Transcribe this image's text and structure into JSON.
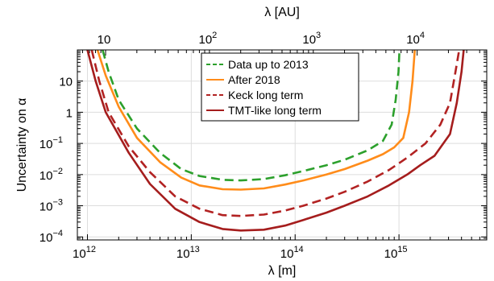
{
  "chart_data": {
    "type": "line",
    "xscale": "log",
    "yscale": "log",
    "xlabel": "λ [m]",
    "ylabel": "Uncertainty on α",
    "top_xlabel": "λ [AU]",
    "xlim": [
      800000000000.0,
      7000000000000000.0
    ],
    "ylim": [
      8e-05,
      100
    ],
    "grid": true,
    "legend_position": "top-center",
    "x_ticks": [
      {
        "value": 1000000000000.0,
        "base": "10",
        "exp": "12"
      },
      {
        "value": 10000000000000.0,
        "base": "10",
        "exp": "13"
      },
      {
        "value": 100000000000000.0,
        "base": "10",
        "exp": "14"
      },
      {
        "value": 1000000000000000.0,
        "base": "10",
        "exp": "15"
      }
    ],
    "y_ticks": [
      {
        "value": 0.0001,
        "base": "10",
        "exp": "−4"
      },
      {
        "value": 0.001,
        "base": "10",
        "exp": "−3"
      },
      {
        "value": 0.01,
        "base": "10",
        "exp": "−2"
      },
      {
        "value": 0.1,
        "base": "10",
        "exp": "−1"
      },
      {
        "value": 1,
        "base": "1",
        "exp": ""
      },
      {
        "value": 10,
        "base": "10",
        "exp": ""
      }
    ],
    "top_ticks": [
      {
        "value": 10,
        "base": "10",
        "exp": ""
      },
      {
        "value": 100,
        "base": "10",
        "exp": "2"
      },
      {
        "value": 1000,
        "base": "10",
        "exp": "3"
      },
      {
        "value": 10000,
        "base": "10",
        "exp": "4"
      }
    ],
    "series": [
      {
        "name": "Data up to 2013",
        "color": "#2ca02c",
        "dash": "dashed",
        "x": [
          1400000000000.0,
          1600000000000.0,
          2000000000000.0,
          3000000000000.0,
          5000000000000.0,
          8000000000000.0,
          12000000000000.0,
          20000000000000.0,
          30000000000000.0,
          50000000000000.0,
          80000000000000.0,
          120000000000000.0,
          200000000000000.0,
          300000000000000.0,
          500000000000000.0,
          700000000000000.0,
          850000000000000.0,
          930000000000000.0,
          990000000000000.0,
          1010000000000000.0
        ],
        "y": [
          100,
          20,
          2.5,
          0.3,
          0.05,
          0.015,
          0.009,
          0.0068,
          0.0065,
          0.0072,
          0.0095,
          0.013,
          0.02,
          0.03,
          0.06,
          0.12,
          0.4,
          2.5,
          20,
          100
        ]
      },
      {
        "name": "After 2018",
        "color": "#ff8c1a",
        "dash": "solid",
        "x": [
          1250000000000.0,
          1500000000000.0,
          2000000000000.0,
          3000000000000.0,
          5000000000000.0,
          8000000000000.0,
          12000000000000.0,
          20000000000000.0,
          30000000000000.0,
          50000000000000.0,
          80000000000000.0,
          120000000000000.0,
          200000000000000.0,
          300000000000000.0,
          500000000000000.0,
          700000000000000.0,
          900000000000000.0,
          1100000000000000.0,
          1250000000000000.0,
          1350000000000000.0,
          1420000000000000.0
        ],
        "y": [
          100,
          15,
          1.5,
          0.15,
          0.025,
          0.008,
          0.0045,
          0.0034,
          0.0033,
          0.0036,
          0.0048,
          0.0065,
          0.01,
          0.015,
          0.028,
          0.045,
          0.075,
          0.15,
          1,
          10,
          100
        ]
      },
      {
        "name": "Keck long term",
        "color": "#b22222",
        "dash": "dashed",
        "x": [
          1100000000000.0,
          1300000000000.0,
          1600000000000.0,
          2500000000000.0,
          4000000000000.0,
          7000000000000.0,
          12000000000000.0,
          20000000000000.0,
          30000000000000.0,
          50000000000000.0,
          80000000000000.0,
          120000000000000.0,
          200000000000000.0,
          300000000000000.0,
          500000000000000.0,
          800000000000000.0,
          1200000000000000.0,
          1800000000000000.0,
          2500000000000000.0,
          3100000000000000.0,
          3500000000000000.0,
          3800000000000000.0
        ],
        "y": [
          100,
          10,
          1,
          0.08,
          0.012,
          0.002,
          0.0008,
          0.0005,
          0.00047,
          0.00052,
          0.0007,
          0.001,
          0.0017,
          0.0028,
          0.006,
          0.014,
          0.035,
          0.1,
          0.4,
          2,
          20,
          100
        ]
      },
      {
        "name": "TMT-like long term",
        "color": "#a51d1d",
        "dash": "solid",
        "x": [
          1000000000000.0,
          1200000000000.0,
          1500000000000.0,
          2500000000000.0,
          4000000000000.0,
          7000000000000.0,
          12000000000000.0,
          20000000000000.0,
          30000000000000.0,
          50000000000000.0,
          80000000000000.0,
          120000000000000.0,
          200000000000000.0,
          300000000000000.0,
          500000000000000.0,
          800000000000000.0,
          1200000000000000.0,
          1600000000000000.0,
          2200000000000000.0,
          3100000000000000.0,
          3600000000000000.0,
          4000000000000000.0,
          4200000000000000.0
        ],
        "y": [
          100,
          10,
          1,
          0.05,
          0.005,
          0.0008,
          0.0003,
          0.00018,
          0.00016,
          0.00017,
          0.00023,
          0.00035,
          0.0006,
          0.001,
          0.002,
          0.0045,
          0.01,
          0.02,
          0.04,
          0.2,
          2,
          20,
          100
        ]
      }
    ]
  }
}
